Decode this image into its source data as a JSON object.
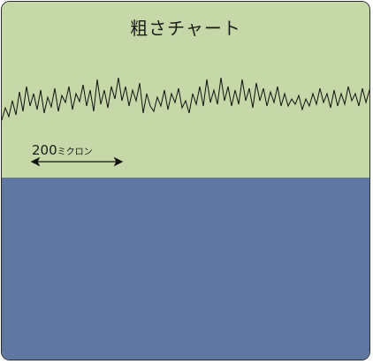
{
  "title": "粗さチャート",
  "scale": {
    "value": "200",
    "unit": "ミクロン"
  },
  "colors": {
    "top_background": "#c6d8a8",
    "bottom_background": "#5f78a2",
    "trace": "#111111",
    "border": "#2a2a2a"
  }
}
